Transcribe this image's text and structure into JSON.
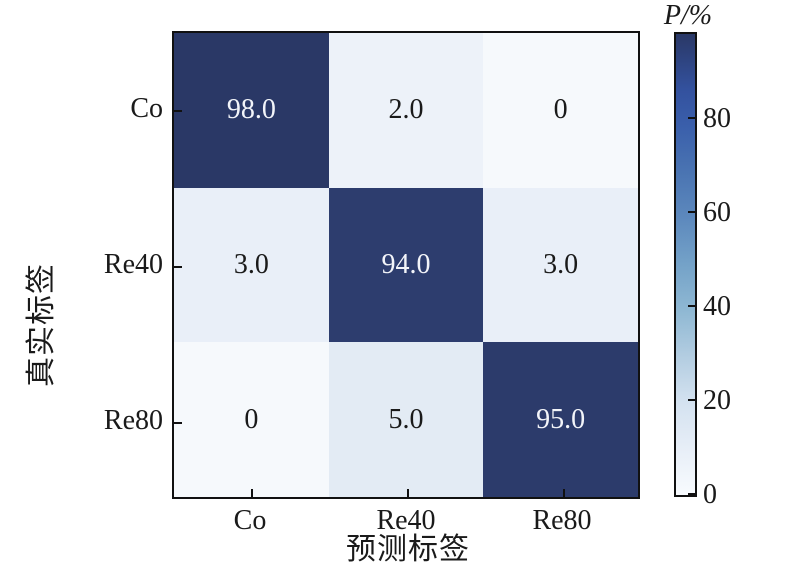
{
  "chart_data": {
    "type": "heatmap",
    "title": "",
    "xlabel": "预测标签",
    "ylabel": "真实标签",
    "x_categories": [
      "Co",
      "Re40",
      "Re80"
    ],
    "y_categories": [
      "Co",
      "Re40",
      "Re80"
    ],
    "values": [
      [
        98.0,
        2.0,
        0
      ],
      [
        3.0,
        94.0,
        3.0
      ],
      [
        0,
        5.0,
        95.0
      ]
    ],
    "cell_labels": [
      [
        "98.0",
        "2.0",
        "0"
      ],
      [
        "3.0",
        "94.0",
        "3.0"
      ],
      [
        "0",
        "5.0",
        "95.0"
      ]
    ],
    "cell_colors": [
      [
        "#2a3866",
        "#edf2f9",
        "#f6f9fc"
      ],
      [
        "#e9eff8",
        "#2d3d6e",
        "#e9eff8"
      ],
      [
        "#f6f9fc",
        "#e3ebf4",
        "#2c3b6b"
      ]
    ],
    "value_text_colors": {
      "on_dark": "#f2f4f9",
      "on_light": "#1a1a1a"
    },
    "grid": false,
    "colorbar": {
      "title": "P/%",
      "ticks": [
        0,
        20,
        40,
        60,
        80
      ],
      "tick_labels": [
        "0",
        "20",
        "40",
        "60",
        "80"
      ],
      "range": [
        0,
        98
      ],
      "gradient": [
        {
          "pos": 0.0,
          "color": "#f8fbfe"
        },
        {
          "pos": 0.1,
          "color": "#e7eef7"
        },
        {
          "pos": 0.2,
          "color": "#d4e2f0"
        },
        {
          "pos": 0.3,
          "color": "#b3cde1"
        },
        {
          "pos": 0.4,
          "color": "#8fb8d3"
        },
        {
          "pos": 0.5,
          "color": "#74a2c8"
        },
        {
          "pos": 0.6,
          "color": "#5d89bd"
        },
        {
          "pos": 0.7,
          "color": "#4a74b2"
        },
        {
          "pos": 0.8,
          "color": "#3a5fab"
        },
        {
          "pos": 0.88,
          "color": "#33519e"
        },
        {
          "pos": 1.0,
          "color": "#2a3866"
        }
      ]
    },
    "axis_color": "#111111"
  }
}
